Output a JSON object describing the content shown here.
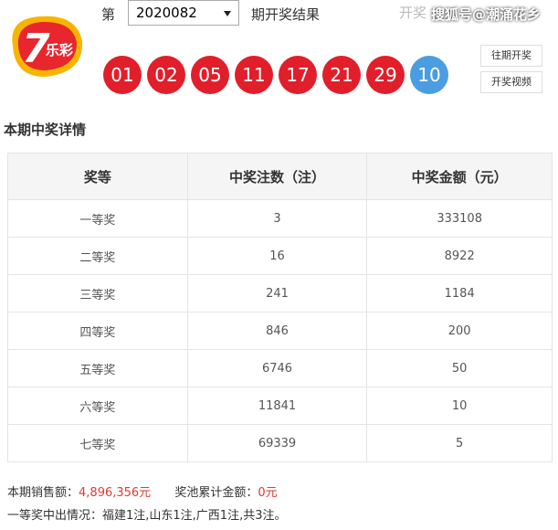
{
  "header": {
    "logo_number": "7",
    "logo_text": "乐彩",
    "prefix": "第",
    "issue": "2020082",
    "suffix": "期开奖结果",
    "date_label": "开奖",
    "watermark": "搜狐号@潮涌花乡",
    "red_balls": [
      "01",
      "02",
      "05",
      "11",
      "17",
      "21",
      "29"
    ],
    "blue_ball": "10",
    "buttons": [
      "往期开奖",
      "开奖视频"
    ]
  },
  "section_title": "本期中奖详情",
  "table": {
    "headers": [
      "奖等",
      "中奖注数（注）",
      "中奖金额（元）"
    ],
    "rows": [
      [
        "一等奖",
        3,
        333108
      ],
      [
        "二等奖",
        16,
        8922
      ],
      [
        "三等奖",
        241,
        1184
      ],
      [
        "四等奖",
        846,
        200
      ],
      [
        "五等奖",
        6746,
        50
      ],
      [
        "六等奖",
        11841,
        10
      ],
      [
        "七等奖",
        69339,
        5
      ]
    ]
  },
  "footer": {
    "sales_label": "本期销售额：",
    "sales_value": "4,896,356元",
    "pool_label": "奖池累计金额：",
    "pool_value": "0元",
    "first_prize": "一等奖中出情况：福建1注,山东1注,广西1注,共3注。"
  }
}
